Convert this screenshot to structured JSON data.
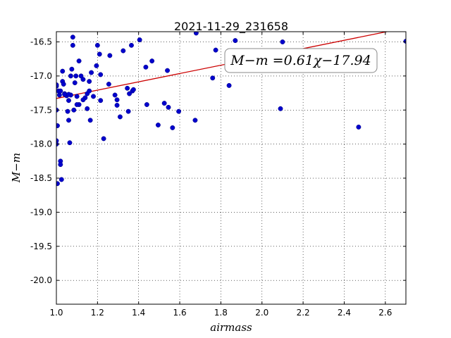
{
  "chart_data": {
    "type": "scatter",
    "title": "2021-11-29_231658",
    "xlabel": "airmass",
    "ylabel": "M−m",
    "xlim": [
      1.0,
      2.7
    ],
    "ylim": [
      -20.35,
      -16.35
    ],
    "x_ticks": [
      "1.0",
      "1.2",
      "1.4",
      "1.6",
      "1.8",
      "2.0",
      "2.2",
      "2.4",
      "2.6"
    ],
    "y_ticks": [
      "-16.5",
      "-17.0",
      "-17.5",
      "-18.0",
      "-18.5",
      "-19.0",
      "-19.5",
      "-20.0"
    ],
    "grid": true,
    "point_color": "#0000cc",
    "fit_line_color": "#cc0000",
    "fit": {
      "slope": 0.61,
      "intercept": -17.94
    },
    "fit_label": "M−m =0.61χ−17.94",
    "series": [
      {
        "x": [
          1.0,
          1.0,
          1.005,
          1.0,
          1.0,
          1.005,
          1.01,
          1.015,
          1.02,
          1.02,
          1.025,
          1.03,
          1.03,
          1.035,
          1.04,
          1.05,
          1.055,
          1.06,
          1.06,
          1.065,
          1.07,
          1.075,
          1.08,
          1.08,
          1.085,
          1.09,
          1.095,
          1.1,
          1.11,
          1.11,
          1.12,
          1.13,
          1.14,
          1.15,
          1.15,
          1.16,
          1.16,
          1.165,
          1.17,
          1.18,
          1.195,
          1.2,
          1.21,
          1.215,
          1.215,
          1.23,
          1.255,
          1.26,
          1.285,
          1.295,
          1.295,
          1.31,
          1.325,
          1.345,
          1.35,
          1.355,
          1.365,
          1.37,
          1.375,
          1.405,
          1.435,
          1.44,
          1.465,
          1.495,
          1.525,
          1.54,
          1.545,
          1.565,
          1.595,
          1.675,
          1.68,
          1.76,
          1.775,
          1.84,
          1.87,
          2.09,
          2.1,
          2.47,
          2.7,
          1.0,
          1.04,
          1.07,
          1.1,
          1.13,
          1.06,
          1.02
        ],
        "y": [
          -17.15,
          -17.5,
          -17.73,
          -17.95,
          -18.0,
          -18.58,
          -17.22,
          -17.28,
          -18.25,
          -18.3,
          -18.52,
          -17.08,
          -16.93,
          -17.12,
          -17.26,
          -17.29,
          -17.52,
          -17.36,
          -17.65,
          -17.98,
          -17.28,
          -16.9,
          -16.55,
          -16.43,
          -17.5,
          -17.1,
          -17.0,
          -17.3,
          -17.42,
          -16.78,
          -17.0,
          -17.05,
          -17.32,
          -17.26,
          -17.48,
          -17.22,
          -17.08,
          -17.65,
          -16.95,
          -17.3,
          -16.85,
          -16.55,
          -16.68,
          -16.98,
          -17.36,
          -17.92,
          -17.12,
          -16.7,
          -17.28,
          -17.35,
          -17.43,
          -17.6,
          -16.63,
          -17.18,
          -17.52,
          -17.26,
          -16.55,
          -17.22,
          -17.2,
          -16.47,
          -16.87,
          -17.42,
          -16.78,
          -17.72,
          -17.4,
          -16.92,
          -17.46,
          -17.76,
          -17.52,
          -17.65,
          -16.37,
          -17.03,
          -16.62,
          -17.14,
          -16.48,
          -17.48,
          -16.5,
          -17.75,
          -16.49,
          -17.13,
          -17.27,
          -17.0,
          -17.42,
          -17.35,
          -17.27,
          -17.22
        ]
      }
    ]
  }
}
